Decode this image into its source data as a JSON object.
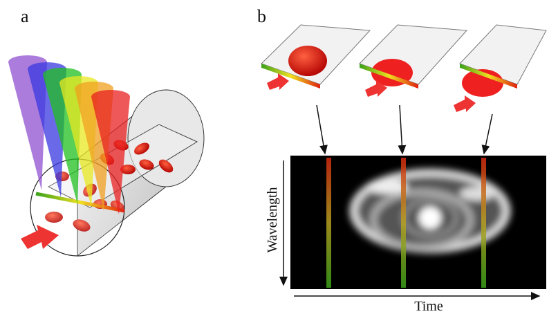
{
  "panel_a": {
    "label": "a"
  },
  "panel_b": {
    "label": "b",
    "y_axis_label": "Wavelength",
    "x_axis_label": "Time"
  }
}
